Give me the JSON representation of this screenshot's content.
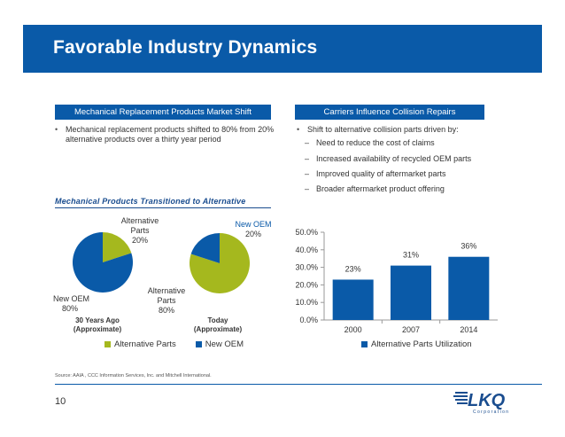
{
  "slide": {
    "title": "Favorable Industry Dynamics",
    "page_number": "10",
    "source": "Source:   AAIA , CCC Information Services, Inc. and Mitchell International."
  },
  "left_section": {
    "header": "Mechanical Replacement Products Market Shift",
    "bullet": "Mechanical replacement products shifted to 80% from 20% alternative products over a thirty year period"
  },
  "right_section": {
    "header": "Carriers Influence Collision Repairs",
    "bullet": "Shift to alternative collision parts driven by:",
    "sub_bullets": [
      "Need to reduce the cost of claims",
      "Increased availability of recycled OEM parts",
      "Improved quality of aftermarket parts",
      "Broader aftermarket product offering"
    ]
  },
  "logo": {
    "text": "LKQ",
    "subtext": "C o r p o r a t i o n"
  },
  "colors": {
    "brand_blue": "#0a5aa8",
    "olive": "#a5b81e",
    "dark_blue": "#1a4d8f"
  },
  "chart_data": [
    {
      "type": "pie",
      "title": "Mechanical Products Transitioned to Alternative",
      "subtitle": "30 Years Ago (Approximate)",
      "subtitle_lines": [
        "30 Years Ago",
        "(Approximate)"
      ],
      "slices": [
        {
          "name": "Alternative Parts",
          "value": 20,
          "label_lines": [
            "Alternative",
            "Parts",
            "20%"
          ]
        },
        {
          "name": "New OEM",
          "value": 80,
          "label_lines": [
            "New OEM",
            "80%"
          ]
        }
      ]
    },
    {
      "type": "pie",
      "subtitle": "Today (Approximate)",
      "subtitle_lines": [
        "Today",
        "(Approximate)"
      ],
      "slices": [
        {
          "name": "Alternative Parts",
          "value": 80,
          "label_lines": [
            "Alternative",
            "Parts",
            "80%"
          ]
        },
        {
          "name": "New OEM",
          "value": 20,
          "label_lines": [
            "New OEM",
            "20%"
          ]
        }
      ],
      "legend": [
        "Alternative Parts",
        "New OEM"
      ]
    },
    {
      "type": "bar",
      "categories": [
        "2000",
        "2007",
        "2014"
      ],
      "series": [
        {
          "name": "Alternative Parts Utilization",
          "values": [
            23,
            31,
            36
          ]
        }
      ],
      "data_labels": [
        "23%",
        "31%",
        "36%"
      ],
      "y_ticks": [
        0,
        10,
        20,
        30,
        40,
        50
      ],
      "y_tick_labels": [
        "0.0%",
        "10.0%",
        "20.0%",
        "30.0%",
        "40.0%",
        "50.0%"
      ],
      "ylim": [
        0,
        50
      ],
      "legend": [
        "Alternative Parts Utilization"
      ]
    }
  ]
}
